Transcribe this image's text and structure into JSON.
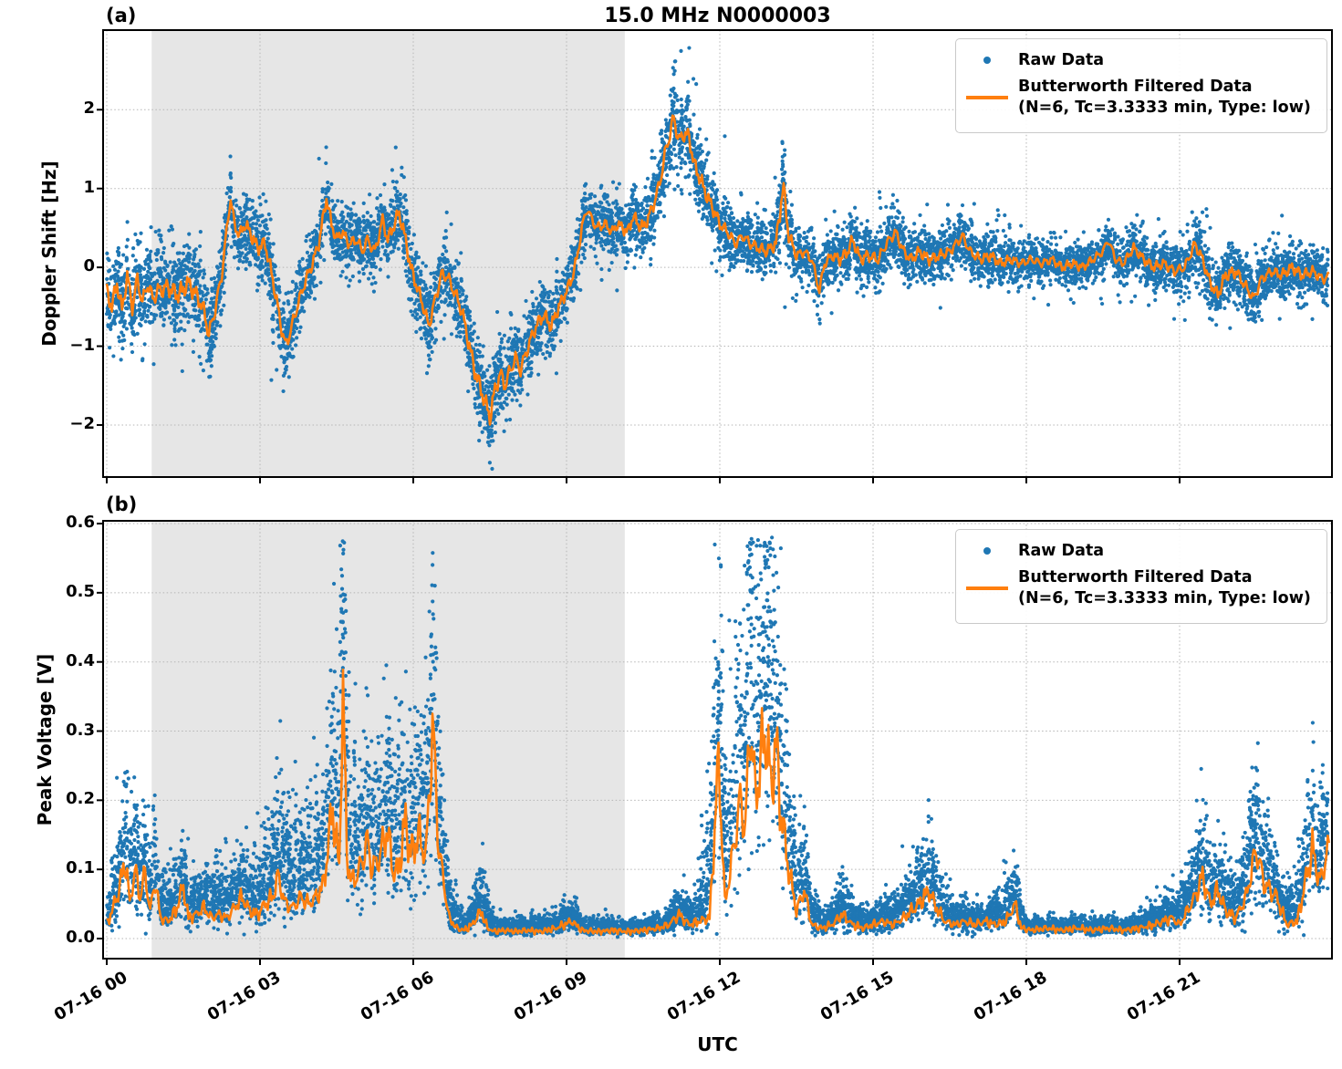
{
  "figure": {
    "title": "15.0 MHz N0000003",
    "xlabel": "UTC",
    "panel_labels": [
      "(a)",
      "(b)"
    ],
    "colors": {
      "raw": "#1f77b4",
      "filtered": "#ff7f0e",
      "shade": "#e6e6e6",
      "grid": "#b5b5b5",
      "axes": "#000000",
      "background": "#ffffff"
    },
    "legend": {
      "raw_label": "Raw Data",
      "filtered_label": "Butterworth Filtered Data",
      "filtered_sublabel": "(N=6, Tc=3.3333 min, Type: low)"
    }
  },
  "chart_data": [
    {
      "type": "scatter",
      "panel": "(a)",
      "title": "15.0 MHz N0000003",
      "ylabel": "Doppler Shift [Hz]",
      "xlabel": "",
      "ylim": [
        -2.66,
        3.01
      ],
      "xlim_hours": [
        -0.07,
        23.95
      ],
      "yticks": [
        2,
        1,
        0,
        -1,
        -2
      ],
      "ytick_labels": [
        "2",
        "1",
        "0",
        "−1",
        "−2"
      ],
      "xticks_hours": [
        0,
        3,
        6,
        9,
        12,
        15,
        18,
        21
      ],
      "xtick_labels": [
        "07-16 00",
        "07-16 03",
        "07-16 06",
        "07-16 09",
        "07-16 12",
        "07-16 15",
        "07-16 18",
        "07-16 21"
      ],
      "grid": true,
      "legend_position": "upper right",
      "shaded_region_hours": [
        0.88,
        10.14
      ],
      "series": [
        {
          "name": "Raw Data",
          "style": "scatter",
          "color": "#1f77b4",
          "description": "dense ~1s-cadence samples forming a band around the filtered line; envelope given by raw_spread"
        },
        {
          "name": "Butterworth Filtered Data (N=6, Tc=3.3333 min, Type: low)",
          "style": "line",
          "color": "#ff7f0e",
          "t_hours": [
            0,
            0.1,
            0.2,
            0.3,
            0.4,
            0.5,
            0.6,
            0.7,
            0.8,
            0.9,
            1.0,
            1.2,
            1.4,
            1.6,
            1.8,
            1.9,
            2.0,
            2.1,
            2.25,
            2.42,
            2.5,
            2.6,
            2.7,
            2.8,
            2.95,
            3.1,
            3.25,
            3.4,
            3.5,
            3.6,
            3.75,
            3.9,
            4.0,
            4.15,
            4.3,
            4.4,
            4.5,
            4.6,
            4.75,
            4.9,
            5.0,
            5.1,
            5.25,
            5.4,
            5.5,
            5.6,
            5.72,
            5.85,
            5.95,
            6.05,
            6.2,
            6.3,
            6.45,
            6.55,
            6.65,
            6.8,
            6.95,
            7.1,
            7.2,
            7.35,
            7.5,
            7.6,
            7.7,
            7.8,
            7.9,
            8.0,
            8.1,
            8.25,
            8.4,
            8.55,
            8.7,
            8.85,
            9.0,
            9.1,
            9.2,
            9.3,
            9.4,
            9.5,
            9.6,
            9.75,
            9.9,
            10.0,
            10.1,
            10.2,
            10.3,
            10.4,
            10.5,
            10.65,
            10.8,
            10.95,
            11.1,
            11.2,
            11.3,
            11.4,
            11.5,
            11.6,
            11.75,
            11.9,
            12.0,
            12.15,
            12.3,
            12.45,
            12.6,
            12.75,
            12.9,
            13.0,
            13.1,
            13.24,
            13.35,
            13.5,
            13.65,
            13.8,
            13.95,
            14.05,
            14.2,
            14.35,
            14.5,
            14.6,
            14.75,
            14.9,
            15.1,
            15.26,
            15.44,
            15.6,
            15.75,
            15.9,
            16.1,
            16.3,
            16.5,
            16.75,
            16.9,
            17.1,
            17.3,
            17.5,
            17.7,
            17.9,
            18.1,
            18.3,
            18.5,
            18.7,
            18.9,
            19.1,
            19.3,
            19.5,
            19.6,
            19.75,
            19.9,
            20.1,
            20.3,
            20.5,
            20.7,
            20.9,
            21.1,
            21.3,
            21.45,
            21.6,
            21.75,
            21.9,
            22.1,
            22.3,
            22.45,
            22.6,
            22.8,
            23.0,
            23.2,
            23.4,
            23.6,
            23.8,
            23.95
          ],
          "values": [
            -0.3,
            -0.5,
            -0.2,
            -0.55,
            -0.1,
            -0.5,
            -0.15,
            -0.45,
            -0.2,
            -0.4,
            -0.3,
            -0.25,
            -0.35,
            -0.2,
            -0.4,
            -0.55,
            -0.85,
            -0.6,
            -0.1,
            0.88,
            0.55,
            0.4,
            0.55,
            0.45,
            0.25,
            0.3,
            -0.15,
            -0.7,
            -1.0,
            -0.8,
            -0.45,
            -0.15,
            0.0,
            0.3,
            0.88,
            0.55,
            0.35,
            0.45,
            0.3,
            0.35,
            0.2,
            0.35,
            0.2,
            0.6,
            0.35,
            0.5,
            0.7,
            0.35,
            0.0,
            -0.2,
            -0.5,
            -0.75,
            -0.35,
            -0.1,
            -0.1,
            -0.3,
            -0.55,
            -1.0,
            -1.3,
            -1.6,
            -1.9,
            -1.55,
            -1.35,
            -1.5,
            -1.3,
            -1.15,
            -1.3,
            -1.0,
            -0.75,
            -0.6,
            -0.75,
            -0.5,
            -0.3,
            -0.15,
            0.1,
            0.5,
            0.75,
            0.6,
            0.5,
            0.55,
            0.45,
            0.55,
            0.5,
            0.45,
            0.65,
            0.55,
            0.5,
            0.7,
            1.0,
            1.5,
            1.9,
            1.6,
            1.7,
            1.65,
            1.3,
            1.15,
            0.9,
            0.7,
            0.55,
            0.45,
            0.3,
            0.4,
            0.3,
            0.25,
            0.2,
            0.25,
            0.3,
            1.05,
            0.4,
            0.15,
            0.2,
            0.1,
            -0.3,
            0.05,
            0.15,
            0.1,
            0.2,
            0.35,
            0.1,
            0.15,
            0.1,
            0.3,
            0.45,
            0.2,
            0.1,
            0.2,
            0.1,
            0.15,
            0.2,
            0.4,
            0.2,
            0.1,
            0.15,
            0.05,
            0.1,
            0.05,
            0.1,
            0.05,
            0.1,
            0.0,
            0.05,
            0.0,
            0.1,
            0.2,
            0.35,
            0.1,
            0.05,
            0.25,
            0.1,
            0.0,
            0.05,
            -0.05,
            0.0,
            0.3,
            0.1,
            -0.2,
            -0.35,
            -0.1,
            -0.05,
            -0.25,
            -0.4,
            -0.15,
            -0.05,
            -0.1,
            0.0,
            -0.1,
            -0.05,
            -0.15,
            -0.1
          ]
        }
      ],
      "raw_spread_t_hours": [
        0,
        1,
        2,
        2.4,
        3,
        3.5,
        4,
        5,
        6,
        7,
        7.5,
        8,
        9,
        10,
        10.5,
        11,
        11.5,
        12,
        13,
        13.2,
        13.5,
        14,
        15,
        16,
        17,
        18,
        19,
        20,
        21,
        22,
        23,
        24
      ],
      "raw_spread": [
        0.45,
        0.5,
        0.5,
        0.35,
        0.4,
        0.45,
        0.35,
        0.35,
        0.4,
        0.45,
        0.5,
        0.45,
        0.35,
        0.3,
        0.4,
        0.5,
        0.45,
        0.35,
        0.3,
        0.55,
        0.3,
        0.3,
        0.35,
        0.3,
        0.3,
        0.25,
        0.25,
        0.25,
        0.3,
        0.35,
        0.3,
        0.3
      ]
    },
    {
      "type": "scatter",
      "panel": "(b)",
      "ylabel": "Peak Voltage [V]",
      "xlabel": "UTC",
      "ylim": [
        -0.029,
        0.604
      ],
      "xlim_hours": [
        -0.07,
        23.95
      ],
      "yticks": [
        0.6,
        0.5,
        0.4,
        0.3,
        0.2,
        0.1,
        0.0
      ],
      "ytick_labels": [
        "0.6",
        "0.5",
        "0.4",
        "0.3",
        "0.2",
        "0.1",
        "0.0"
      ],
      "xticks_hours": [
        0,
        3,
        6,
        9,
        12,
        15,
        18,
        21
      ],
      "xtick_labels": [
        "07-16 00",
        "07-16 03",
        "07-16 06",
        "07-16 09",
        "07-16 12",
        "07-16 15",
        "07-16 18",
        "07-16 21"
      ],
      "grid": true,
      "legend_position": "upper right",
      "shaded_region_hours": [
        0.88,
        10.14
      ],
      "series": [
        {
          "name": "Raw Data",
          "style": "scatter",
          "color": "#1f77b4",
          "description": "dense non-negative samples hugging the filtered line with upward spikes; envelope given by raw_spread"
        },
        {
          "name": "Butterworth Filtered Data (N=6, Tc=3.3333 min, Type: low)",
          "style": "line",
          "color": "#ff7f0e",
          "t_hours": [
            0,
            0.1,
            0.2,
            0.3,
            0.37,
            0.45,
            0.55,
            0.65,
            0.75,
            0.85,
            0.95,
            1.05,
            1.2,
            1.35,
            1.5,
            1.6,
            1.75,
            1.9,
            2.05,
            2.2,
            2.35,
            2.5,
            2.65,
            2.8,
            2.95,
            3.1,
            3.25,
            3.35,
            3.5,
            3.65,
            3.8,
            3.95,
            4.1,
            4.25,
            4.42,
            4.55,
            4.62,
            4.7,
            4.8,
            4.95,
            5.1,
            5.2,
            5.35,
            5.49,
            5.6,
            5.7,
            5.85,
            5.95,
            6.1,
            6.25,
            6.38,
            6.5,
            6.6,
            6.7,
            6.85,
            7.0,
            7.15,
            7.33,
            7.45,
            7.6,
            7.8,
            8.0,
            8.2,
            8.5,
            8.8,
            9.1,
            9.3,
            9.6,
            9.9,
            10.2,
            10.5,
            10.8,
            11.0,
            11.2,
            11.4,
            11.6,
            11.8,
            11.98,
            12.1,
            12.25,
            12.4,
            12.5,
            12.6,
            12.7,
            12.8,
            12.9,
            13.0,
            13.1,
            13.2,
            13.35,
            13.5,
            13.65,
            13.8,
            14.0,
            14.2,
            14.4,
            14.6,
            14.8,
            15.0,
            15.2,
            15.4,
            15.6,
            15.9,
            16.1,
            16.2,
            16.4,
            16.6,
            16.8,
            17.0,
            17.2,
            17.4,
            17.6,
            17.78,
            17.9,
            18.1,
            18.4,
            18.7,
            19.0,
            19.3,
            19.6,
            19.9,
            20.2,
            20.5,
            20.85,
            21.0,
            21.3,
            21.45,
            21.6,
            21.75,
            21.9,
            22.1,
            22.3,
            22.5,
            22.65,
            22.9,
            23.1,
            23.3,
            23.6,
            23.75,
            23.9,
            23.97
          ],
          "values": [
            0.02,
            0.04,
            0.06,
            0.09,
            0.115,
            0.05,
            0.1,
            0.06,
            0.095,
            0.04,
            0.085,
            0.03,
            0.025,
            0.04,
            0.075,
            0.03,
            0.035,
            0.045,
            0.03,
            0.035,
            0.03,
            0.045,
            0.06,
            0.04,
            0.035,
            0.05,
            0.06,
            0.09,
            0.05,
            0.045,
            0.06,
            0.05,
            0.06,
            0.08,
            0.19,
            0.1,
            0.37,
            0.12,
            0.08,
            0.1,
            0.14,
            0.1,
            0.12,
            0.16,
            0.1,
            0.095,
            0.17,
            0.12,
            0.15,
            0.12,
            0.31,
            0.13,
            0.08,
            0.03,
            0.015,
            0.012,
            0.02,
            0.04,
            0.015,
            0.01,
            0.012,
            0.01,
            0.012,
            0.01,
            0.015,
            0.025,
            0.012,
            0.01,
            0.012,
            0.01,
            0.012,
            0.015,
            0.02,
            0.035,
            0.02,
            0.025,
            0.03,
            0.26,
            0.05,
            0.12,
            0.2,
            0.16,
            0.32,
            0.2,
            0.26,
            0.3,
            0.22,
            0.28,
            0.18,
            0.1,
            0.04,
            0.07,
            0.02,
            0.015,
            0.02,
            0.035,
            0.02,
            0.015,
            0.02,
            0.025,
            0.02,
            0.03,
            0.05,
            0.07,
            0.05,
            0.025,
            0.02,
            0.025,
            0.02,
            0.025,
            0.02,
            0.025,
            0.05,
            0.015,
            0.012,
            0.015,
            0.012,
            0.015,
            0.012,
            0.015,
            0.012,
            0.015,
            0.02,
            0.03,
            0.02,
            0.06,
            0.09,
            0.05,
            0.07,
            0.04,
            0.03,
            0.06,
            0.13,
            0.08,
            0.06,
            0.02,
            0.025,
            0.13,
            0.08,
            0.13,
            0.1
          ]
        }
      ],
      "raw_spread_t_hours": [
        0,
        0.4,
        1,
        2,
        3,
        3.5,
        4.3,
        4.62,
        5,
        5.5,
        6,
        6.4,
        6.7,
        7,
        7.33,
        7.6,
        9.1,
        10,
        11,
        11.5,
        11.98,
        12.2,
        12.6,
        13,
        13.35,
        13.65,
        14,
        14.4,
        15,
        15.9,
        16.2,
        16.6,
        17,
        17.78,
        18,
        19,
        20,
        20.85,
        21.3,
        21.6,
        22,
        22.5,
        23,
        23.6,
        23.9
      ],
      "raw_spread": [
        0.02,
        0.07,
        0.04,
        0.03,
        0.05,
        0.08,
        0.1,
        0.15,
        0.07,
        0.09,
        0.09,
        0.12,
        0.04,
        0.01,
        0.04,
        0.008,
        0.015,
        0.008,
        0.01,
        0.02,
        0.2,
        0.12,
        0.2,
        0.18,
        0.08,
        0.05,
        0.01,
        0.03,
        0.01,
        0.04,
        0.04,
        0.015,
        0.01,
        0.04,
        0.008,
        0.008,
        0.008,
        0.02,
        0.05,
        0.04,
        0.03,
        0.06,
        0.02,
        0.06,
        0.05
      ]
    }
  ]
}
